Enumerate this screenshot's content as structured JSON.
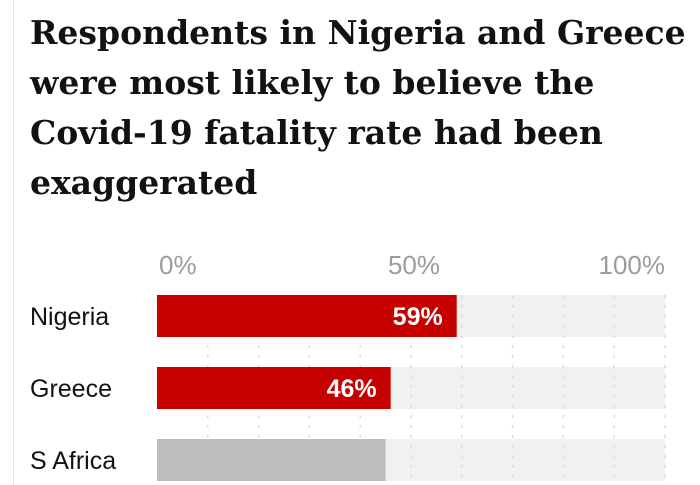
{
  "chart_data": {
    "type": "bar",
    "orientation": "horizontal",
    "title": "Respondents in Nigeria and Greece were most likely to believe the Covid-19 fatality rate had been exaggerated",
    "xlim": [
      0,
      100
    ],
    "ticks": [
      0,
      50,
      100
    ],
    "tick_labels": [
      "0%",
      "50%",
      "100%"
    ],
    "grid": true,
    "categories": [
      "Nigeria",
      "Greece",
      "S Africa"
    ],
    "values": [
      59,
      46,
      45
    ],
    "value_labels": [
      "59%",
      "46%",
      ""
    ],
    "colors": {
      "highlight": "#c70000",
      "muted": "#bdbdbd",
      "track": "#f1f1f1",
      "grid": "#dcdcdc"
    },
    "highlighted": [
      true,
      true,
      false
    ]
  }
}
